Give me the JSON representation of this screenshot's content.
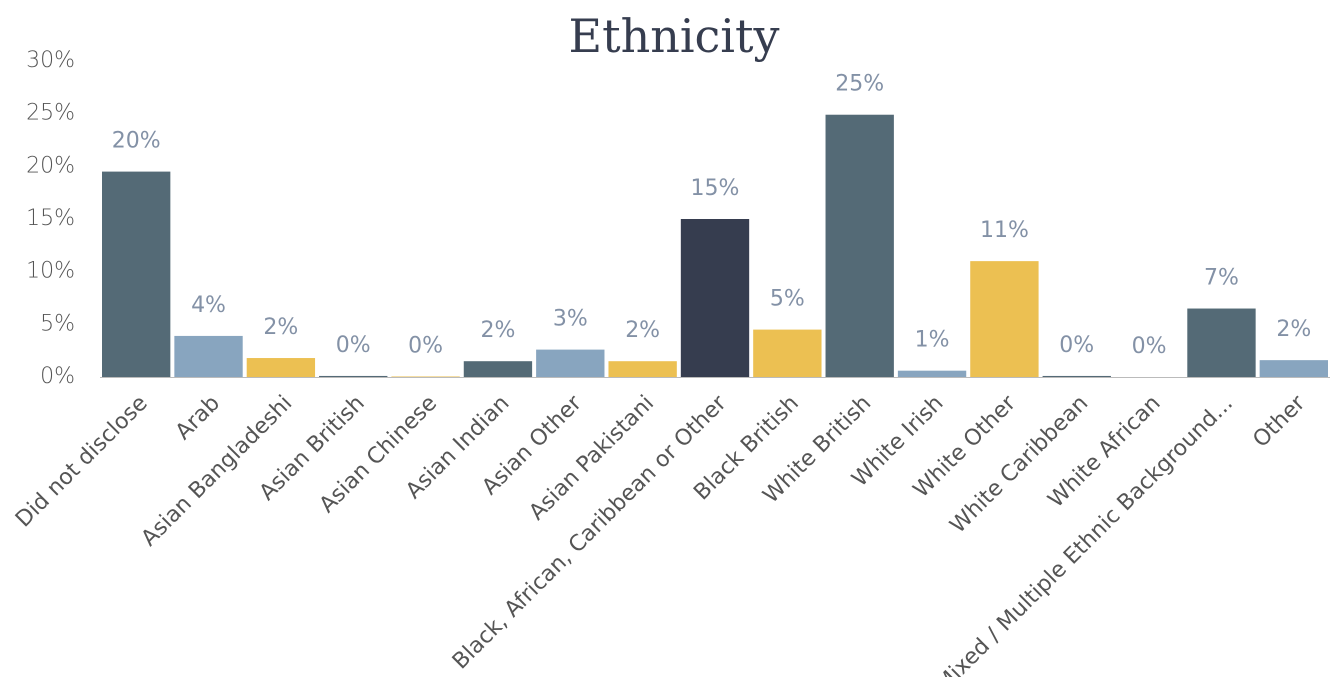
{
  "chart_data": {
    "type": "bar",
    "title": "Ethnicity",
    "categories": [
      "Did not disclose",
      "Arab",
      "Asian Bangladeshi",
      "Asian British",
      "Asian Chinese",
      "Asian Indian",
      "Asian Other",
      "Asian Pakistani",
      "Black, African, Caribbean or Other",
      "Black British",
      "White British",
      "White Irish",
      "White Other",
      "White Caribbean",
      "White African",
      "Mixed / Multiple Ethnic Background...",
      "Other"
    ],
    "values": [
      19.5,
      3.9,
      1.8,
      0.1,
      0.05,
      1.5,
      2.6,
      1.5,
      15.0,
      4.5,
      24.9,
      0.6,
      11.0,
      0.1,
      0,
      6.5,
      1.6
    ],
    "value_labels": [
      "20%",
      "4%",
      "2%",
      "0%",
      "0%",
      "2%",
      "3%",
      "2%",
      "15%",
      "5%",
      "25%",
      "1%",
      "11%",
      "0%",
      "0%",
      "7%",
      "2%"
    ],
    "colors": [
      "#546a76",
      "#88a5bf",
      "#ecc052",
      "#546a76",
      "#ecc052",
      "#546a76",
      "#88a5bf",
      "#ecc052",
      "#363d4f",
      "#ecc052",
      "#546a76",
      "#88a5bf",
      "#ecc052",
      "#546a76",
      "#88a5bf",
      "#546a76",
      "#88a5bf"
    ],
    "ylim": [
      0,
      30
    ],
    "yticks": [
      {
        "value": 0,
        "label": "0%"
      },
      {
        "value": 5,
        "label": "5%"
      },
      {
        "value": 10,
        "label": "10%"
      },
      {
        "value": 15,
        "label": "15%"
      },
      {
        "value": 20,
        "label": "20%"
      },
      {
        "value": 25,
        "label": "25%"
      },
      {
        "value": 30,
        "label": "30%"
      }
    ],
    "grid": false
  }
}
